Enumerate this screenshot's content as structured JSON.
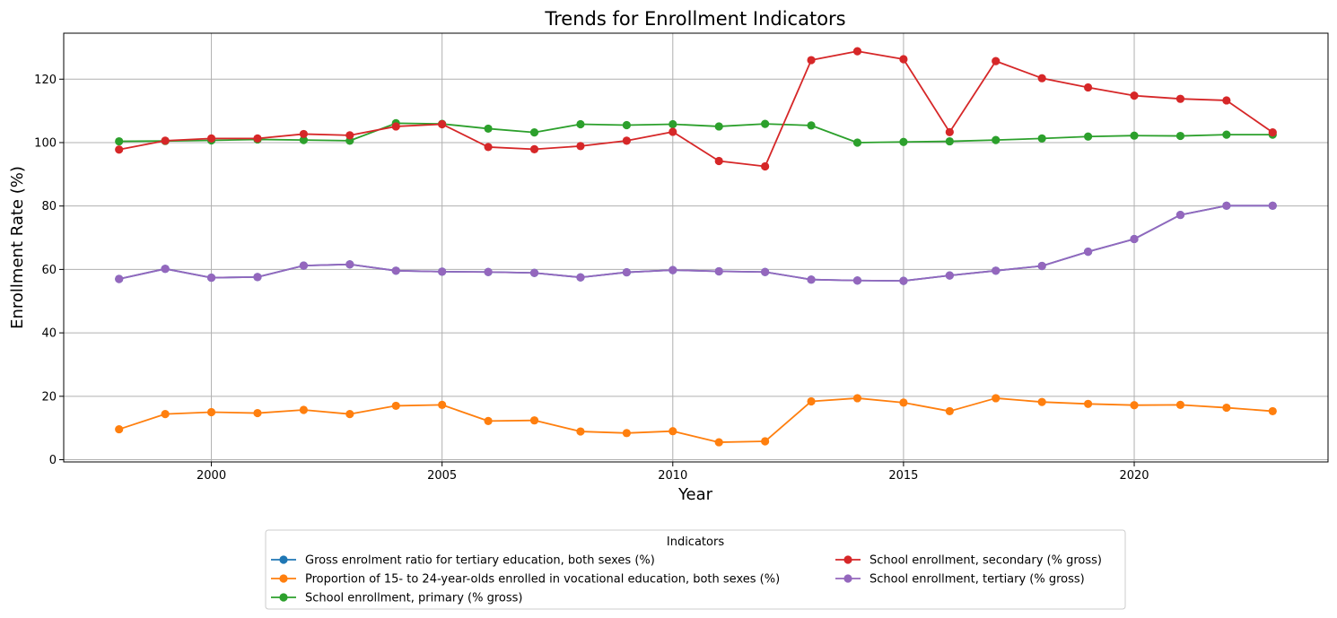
{
  "chart_data": {
    "type": "line",
    "title": "Trends for Enrollment Indicators",
    "xlabel": "Year",
    "ylabel": "Enrollment Rate (%)",
    "xlim": [
      1996.8,
      2024.2
    ],
    "ylim": [
      -0.7,
      134.5
    ],
    "x_ticks": [
      2000,
      2005,
      2010,
      2015,
      2020
    ],
    "y_ticks": [
      0,
      20,
      40,
      60,
      80,
      100,
      120
    ],
    "grid": true,
    "legend": {
      "title": "Indicators",
      "placement": "bottom-center, below plot, 2 columns"
    },
    "x": [
      1998,
      1999,
      2000,
      2001,
      2002,
      2003,
      2004,
      2005,
      2006,
      2007,
      2008,
      2009,
      2010,
      2011,
      2012,
      2013,
      2014,
      2015,
      2016,
      2017,
      2018,
      2019,
      2020,
      2021,
      2022,
      2023
    ],
    "series": [
      {
        "name": "Gross enrolment ratio for tertiary education, both sexes (%)",
        "color": "#1f77b4",
        "values": [
          57.0,
          60.2,
          57.4,
          57.6,
          61.2,
          61.6,
          59.6,
          59.3,
          59.2,
          58.9,
          57.5,
          59.1,
          59.8,
          59.4,
          59.2,
          56.8,
          56.5,
          56.4,
          58.1,
          59.6,
          61.1,
          65.6,
          69.6,
          77.2,
          80.1,
          80.1
        ]
      },
      {
        "name": "Proportion of 15- to 24-year-olds enrolled in vocational education, both sexes (%)",
        "color": "#ff7f0e",
        "values": [
          9.6,
          14.4,
          15.0,
          14.7,
          15.7,
          14.4,
          17.0,
          17.3,
          12.2,
          12.4,
          8.9,
          8.4,
          9.0,
          5.5,
          5.8,
          18.4,
          19.4,
          18.0,
          15.3,
          19.4,
          18.2,
          17.6,
          17.2,
          17.3,
          16.4,
          15.3
        ]
      },
      {
        "name": "School enrollment, primary (% gross)",
        "color": "#2ca02c",
        "values": [
          100.4,
          100.5,
          100.7,
          101.0,
          100.8,
          100.6,
          106.1,
          105.9,
          104.4,
          103.2,
          105.8,
          105.5,
          105.8,
          105.1,
          105.9,
          105.4,
          100.0,
          100.2,
          100.4,
          100.8,
          101.3,
          101.9,
          102.2,
          102.1,
          102.5,
          102.5
        ]
      },
      {
        "name": "School enrollment, secondary (% gross)",
        "color": "#d62728",
        "values": [
          97.8,
          100.6,
          101.3,
          101.3,
          102.7,
          102.3,
          105.1,
          105.8,
          98.6,
          97.9,
          98.9,
          100.6,
          103.4,
          94.2,
          92.5,
          126.0,
          128.8,
          126.3,
          103.3,
          125.7,
          120.3,
          117.4,
          114.8,
          113.8,
          113.3,
          103.2
        ]
      },
      {
        "name": "School enrollment, tertiary (% gross)",
        "color": "#9467bd",
        "values": [
          57.0,
          60.2,
          57.4,
          57.6,
          61.2,
          61.6,
          59.6,
          59.3,
          59.2,
          58.9,
          57.5,
          59.1,
          59.8,
          59.4,
          59.2,
          56.8,
          56.5,
          56.4,
          58.1,
          59.6,
          61.1,
          65.6,
          69.6,
          77.2,
          80.1,
          80.1
        ]
      }
    ]
  }
}
